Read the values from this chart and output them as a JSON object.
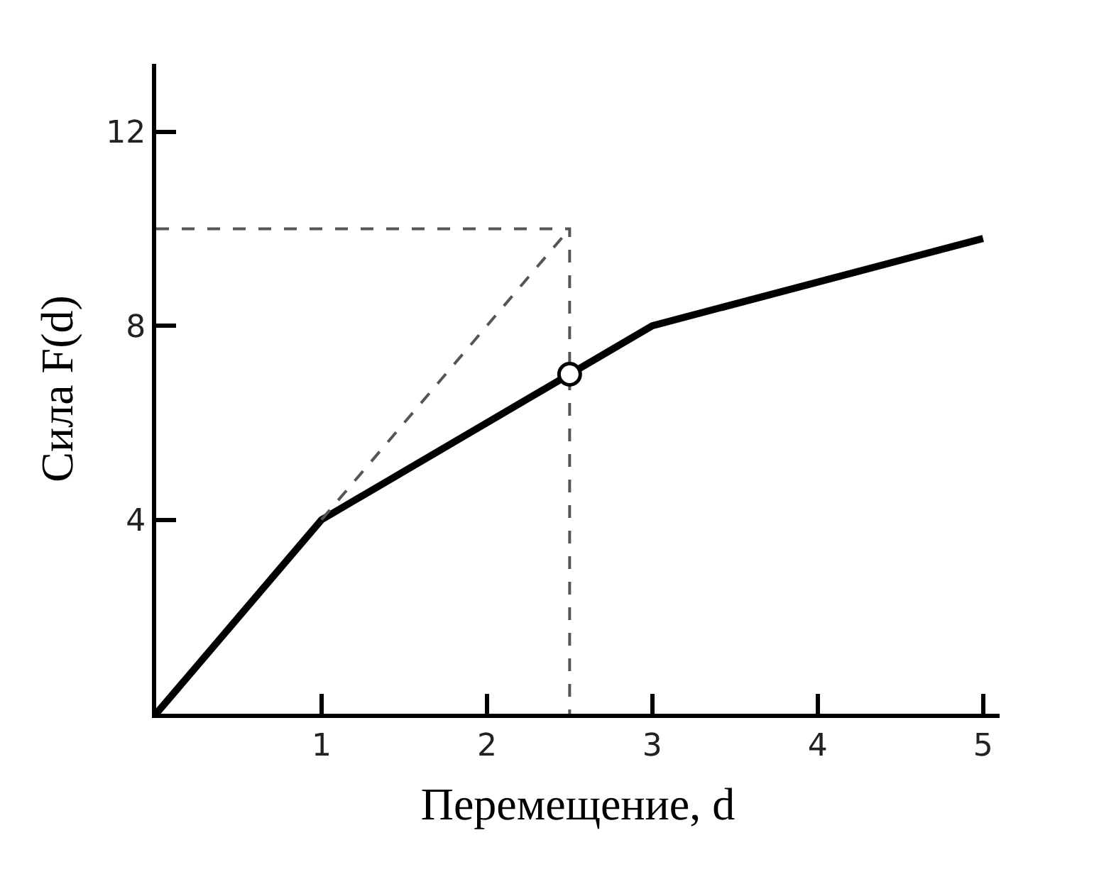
{
  "chart_data": {
    "type": "line",
    "xlabel": "Перемещение, d",
    "ylabel": "Сила F(d)",
    "xlim": [
      0,
      5.1
    ],
    "ylim": [
      0,
      13.4
    ],
    "xticks": [
      1,
      2,
      3,
      4,
      5
    ],
    "yticks": [
      4,
      8,
      12
    ],
    "series": [
      {
        "color": "#000000",
        "x": [
          0,
          1,
          2.5,
          3,
          5
        ],
        "values": [
          0,
          4,
          7,
          8,
          9.8
        ],
        "line_style": "solid",
        "marker": "none"
      },
      {
        "color": "#555555",
        "x": [
          1,
          2.5
        ],
        "values": [
          4,
          10
        ],
        "line_style": "dashed",
        "marker": "none"
      },
      {
        "color": "#555555",
        "x": [
          0,
          2.5,
          2.5
        ],
        "values": [
          10,
          10,
          0
        ],
        "line_style": "dashed",
        "marker": "none"
      },
      {
        "type": "scatter",
        "color": "#000000",
        "x": [
          2.5
        ],
        "values": [
          7
        ],
        "marker": "circle"
      }
    ]
  }
}
